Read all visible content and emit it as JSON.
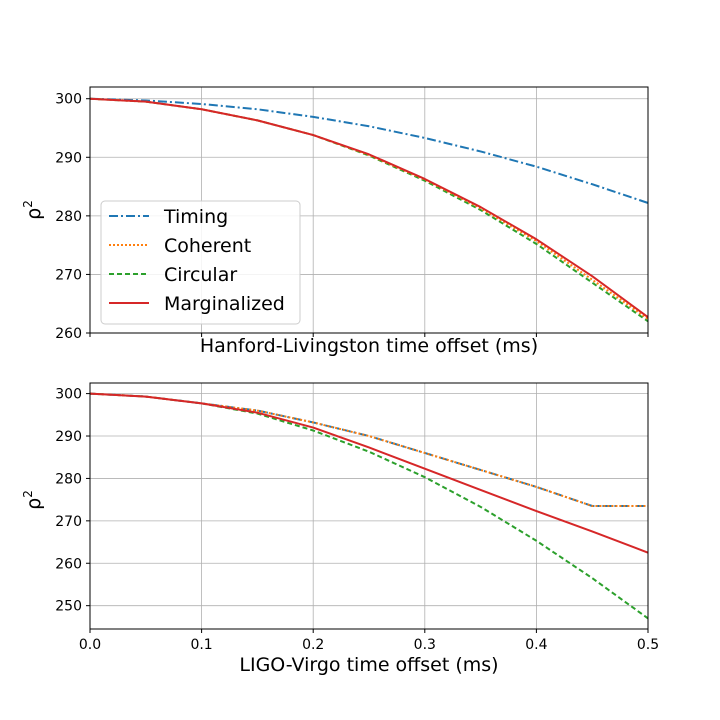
{
  "colors": {
    "timing": "#1f77b4",
    "coherent": "#ff7f0e",
    "circular": "#2ca02c",
    "marginalized": "#d62728",
    "grid": "#b0b0b0"
  },
  "chart_data": [
    {
      "type": "line",
      "title": "",
      "xlabel": "Hanford-Livingston time offset (ms)",
      "ylabel": "ρ²",
      "xlim": [
        0,
        0.5
      ],
      "ylim": [
        260,
        302
      ],
      "yticks": [
        260,
        270,
        280,
        290,
        300
      ],
      "xticks": [
        0.0,
        0.1,
        0.2,
        0.3,
        0.4,
        0.5
      ],
      "show_xtick_labels": false,
      "grid": true,
      "legend": {
        "position": "center-left",
        "entries": [
          "Timing",
          "Coherent",
          "Circular",
          "Marginalized"
        ]
      },
      "x": [
        0.0,
        0.05,
        0.1,
        0.15,
        0.2,
        0.25,
        0.3,
        0.35,
        0.4,
        0.45,
        0.5
      ],
      "series": [
        {
          "name": "Timing",
          "style": "dashdot",
          "values": [
            300.0,
            299.7,
            299.1,
            298.2,
            296.9,
            295.3,
            293.3,
            291.0,
            288.4,
            285.4,
            282.2
          ]
        },
        {
          "name": "Coherent",
          "style": "dotted",
          "values": [
            300.0,
            299.5,
            298.2,
            296.3,
            293.8,
            290.4,
            286.2,
            281.3,
            275.7,
            269.1,
            262.4
          ]
        },
        {
          "name": "Circular",
          "style": "dashed",
          "values": [
            300.0,
            299.5,
            298.2,
            296.3,
            293.8,
            290.3,
            286.0,
            281.0,
            275.2,
            268.6,
            262.0
          ]
        },
        {
          "name": "Marginalized",
          "style": "solid",
          "values": [
            300.0,
            299.5,
            298.2,
            296.3,
            293.8,
            290.5,
            286.3,
            281.5,
            276.0,
            269.7,
            262.7
          ]
        }
      ]
    },
    {
      "type": "line",
      "title": "",
      "xlabel": "LIGO-Virgo time offset (ms)",
      "ylabel": "ρ²",
      "xlim": [
        0,
        0.5
      ],
      "ylim": [
        244.5,
        302.5
      ],
      "yticks": [
        250,
        260,
        270,
        280,
        290,
        300
      ],
      "xticks": [
        0.0,
        0.1,
        0.2,
        0.3,
        0.4,
        0.5
      ],
      "xtick_labels": [
        "0.0",
        "0.1",
        "0.2",
        "0.3",
        "0.4",
        "0.5"
      ],
      "show_xtick_labels": true,
      "grid": true,
      "x": [
        0.0,
        0.05,
        0.1,
        0.15,
        0.2,
        0.25,
        0.3,
        0.35,
        0.4,
        0.45,
        0.5
      ],
      "series": [
        {
          "name": "Timing",
          "style": "dashdot",
          "values": [
            300.0,
            299.3,
            297.7,
            296.0,
            293.2,
            290.0,
            286.0,
            282.0,
            278.0,
            273.5,
            273.5
          ]
        },
        {
          "name": "Coherent",
          "style": "dotted",
          "values": [
            300.0,
            299.3,
            297.7,
            296.0,
            293.2,
            290.0,
            286.0,
            282.0,
            278.0,
            273.5,
            273.5
          ]
        },
        {
          "name": "Circular",
          "style": "dashed",
          "values": [
            300.0,
            299.3,
            297.7,
            295.3,
            291.3,
            286.3,
            280.3,
            273.3,
            265.3,
            256.5,
            247.0
          ]
        },
        {
          "name": "Marginalized",
          "style": "solid",
          "values": [
            300.0,
            299.3,
            297.7,
            295.5,
            292.0,
            287.3,
            282.3,
            277.3,
            272.3,
            267.5,
            262.5
          ]
        }
      ]
    }
  ]
}
